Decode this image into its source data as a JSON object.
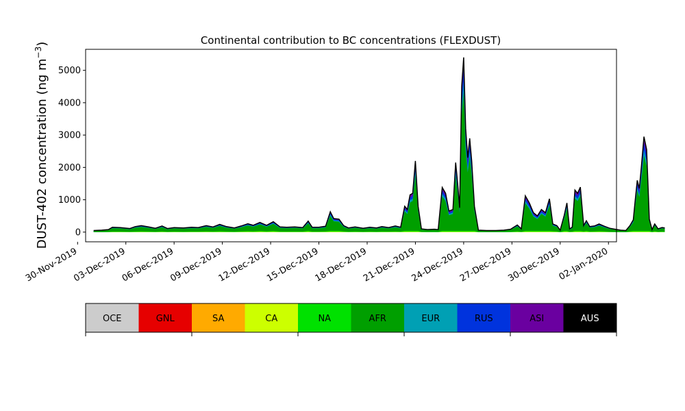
{
  "chart_data": {
    "type": "area",
    "title": "Continental contribution to BC concentrations (FLEXDUST)",
    "ylabel": "DUST-402 concentration (ng m",
    "ylabel_superscript": "−3",
    "ylabel_suffix": ")",
    "xlabel": "",
    "ylim": [
      -300,
      5650
    ],
    "yticks": [
      0,
      1000,
      2000,
      3000,
      4000,
      5000
    ],
    "xlim": [
      "2019-11-30T12:00",
      "2020-01-02T12:00"
    ],
    "xticks": [
      "30-Nov-2019",
      "03-Dec-2019",
      "06-Dec-2019",
      "09-Dec-2019",
      "12-Dec-2019",
      "15-Dec-2019",
      "18-Dec-2019",
      "21-Dec-2019",
      "24-Dec-2019",
      "27-Dec-2019",
      "30-Dec-2019",
      "02-Jan-2020"
    ],
    "xtick_dates": [
      "2019-11-30",
      "2019-12-03",
      "2019-12-06",
      "2019-12-09",
      "2019-12-12",
      "2019-12-15",
      "2019-12-18",
      "2019-12-21",
      "2019-12-24",
      "2019-12-27",
      "2019-12-30",
      "2020-01-02"
    ],
    "grid": false,
    "legend": {
      "placement": "bottom colorbar",
      "items": [
        {
          "label": "OCE",
          "color": "#cccccc"
        },
        {
          "label": "GNL",
          "color": "#e60000"
        },
        {
          "label": "SA",
          "color": "#ffaa00"
        },
        {
          "label": "CA",
          "color": "#ccff00"
        },
        {
          "label": "NA",
          "color": "#00e100"
        },
        {
          "label": "AFR",
          "color": "#009f00"
        },
        {
          "label": "EUR",
          "color": "#00a0b4"
        },
        {
          "label": "RUS",
          "color": "#0033dd"
        },
        {
          "label": "ASI",
          "color": "#6a00a0"
        },
        {
          "label": "AUS",
          "color": "#000000"
        }
      ]
    },
    "total_series": {
      "name": "AUS",
      "color": "#000000",
      "points": [
        [
          "2019-12-01T00:00",
          50
        ],
        [
          "2019-12-01T12:00",
          60
        ],
        [
          "2019-12-01T22:00",
          80
        ],
        [
          "2019-12-02T04:00",
          150
        ],
        [
          "2019-12-02T16:00",
          140
        ],
        [
          "2019-12-03T06:00",
          110
        ],
        [
          "2019-12-03T14:00",
          170
        ],
        [
          "2019-12-03T23:00",
          200
        ],
        [
          "2019-12-04T10:00",
          160
        ],
        [
          "2019-12-04T20:00",
          120
        ],
        [
          "2019-12-05T06:00",
          190
        ],
        [
          "2019-12-05T14:00",
          110
        ],
        [
          "2019-12-06T00:00",
          140
        ],
        [
          "2019-12-06T14:00",
          130
        ],
        [
          "2019-12-07T02:00",
          150
        ],
        [
          "2019-12-07T12:00",
          140
        ],
        [
          "2019-12-08T00:00",
          200
        ],
        [
          "2019-12-08T10:00",
          160
        ],
        [
          "2019-12-08T20:00",
          240
        ],
        [
          "2019-12-09T06:00",
          170
        ],
        [
          "2019-12-09T18:00",
          130
        ],
        [
          "2019-12-10T04:00",
          190
        ],
        [
          "2019-12-10T14:00",
          260
        ],
        [
          "2019-12-10T22:00",
          210
        ],
        [
          "2019-12-11T08:00",
          300
        ],
        [
          "2019-12-11T18:00",
          210
        ],
        [
          "2019-12-12T04:00",
          320
        ],
        [
          "2019-12-12T14:00",
          160
        ],
        [
          "2019-12-13T00:00",
          150
        ],
        [
          "2019-12-13T12:00",
          160
        ],
        [
          "2019-12-14T00:00",
          140
        ],
        [
          "2019-12-14T08:00",
          340
        ],
        [
          "2019-12-14T14:00",
          150
        ],
        [
          "2019-12-15T00:00",
          150
        ],
        [
          "2019-12-15T10:00",
          180
        ],
        [
          "2019-12-15T17:00",
          630
        ],
        [
          "2019-12-15T22:00",
          420
        ],
        [
          "2019-12-16T06:00",
          400
        ],
        [
          "2019-12-16T13:00",
          200
        ],
        [
          "2019-12-16T20:00",
          130
        ],
        [
          "2019-12-17T06:00",
          160
        ],
        [
          "2019-12-17T18:00",
          120
        ],
        [
          "2019-12-18T04:00",
          150
        ],
        [
          "2019-12-18T14:00",
          130
        ],
        [
          "2019-12-18T22:00",
          170
        ],
        [
          "2019-12-19T08:00",
          140
        ],
        [
          "2019-12-19T18:00",
          190
        ],
        [
          "2019-12-20T02:00",
          150
        ],
        [
          "2019-12-20T08:00",
          800
        ],
        [
          "2019-12-20T12:00",
          700
        ],
        [
          "2019-12-20T16:00",
          1150
        ],
        [
          "2019-12-20T20:00",
          1200
        ],
        [
          "2019-12-21T00:00",
          2200
        ],
        [
          "2019-12-21T04:00",
          800
        ],
        [
          "2019-12-21T09:00",
          100
        ],
        [
          "2019-12-21T18:00",
          80
        ],
        [
          "2019-12-22T04:00",
          90
        ],
        [
          "2019-12-22T10:00",
          80
        ],
        [
          "2019-12-22T16:00",
          1380
        ],
        [
          "2019-12-22T21:00",
          1200
        ],
        [
          "2019-12-23T02:00",
          650
        ],
        [
          "2019-12-23T08:00",
          700
        ],
        [
          "2019-12-23T12:00",
          2150
        ],
        [
          "2019-12-23T15:00",
          1500
        ],
        [
          "2019-12-23T18:00",
          750
        ],
        [
          "2019-12-23T21:00",
          4500
        ],
        [
          "2019-12-24T00:00",
          5400
        ],
        [
          "2019-12-24T03:00",
          3200
        ],
        [
          "2019-12-24T06:00",
          2300
        ],
        [
          "2019-12-24T09:00",
          2900
        ],
        [
          "2019-12-24T12:00",
          2200
        ],
        [
          "2019-12-24T16:00",
          800
        ],
        [
          "2019-12-24T22:00",
          60
        ],
        [
          "2019-12-25T10:00",
          50
        ],
        [
          "2019-12-26T00:00",
          50
        ],
        [
          "2019-12-26T12:00",
          60
        ],
        [
          "2019-12-26T22:00",
          90
        ],
        [
          "2019-12-27T08:00",
          220
        ],
        [
          "2019-12-27T14:00",
          100
        ],
        [
          "2019-12-27T20:00",
          1120
        ],
        [
          "2019-12-28T02:00",
          900
        ],
        [
          "2019-12-28T08:00",
          600
        ],
        [
          "2019-12-28T14:00",
          500
        ],
        [
          "2019-12-28T20:00",
          700
        ],
        [
          "2019-12-29T02:00",
          600
        ],
        [
          "2019-12-29T08:00",
          1030
        ],
        [
          "2019-12-29T13:00",
          250
        ],
        [
          "2019-12-29T19:00",
          200
        ],
        [
          "2019-12-30T00:00",
          60
        ],
        [
          "2019-12-30T06:00",
          520
        ],
        [
          "2019-12-30T10:00",
          900
        ],
        [
          "2019-12-30T14:00",
          100
        ],
        [
          "2019-12-30T18:00",
          150
        ],
        [
          "2019-12-30T22:00",
          1300
        ],
        [
          "2019-12-31T02:00",
          1200
        ],
        [
          "2019-12-31T06:00",
          1390
        ],
        [
          "2019-12-31T11:00",
          200
        ],
        [
          "2019-12-31T15:00",
          350
        ],
        [
          "2019-12-31T20:00",
          170
        ],
        [
          "2020-01-01T03:00",
          190
        ],
        [
          "2020-01-01T10:00",
          250
        ],
        [
          "2020-01-01T18:00",
          180
        ],
        [
          "2020-01-02T02:00",
          120
        ],
        [
          "2020-01-02T10:00",
          90
        ],
        [
          "2020-01-02T18:00",
          60
        ],
        [
          "2020-01-03T02:00",
          50
        ],
        [
          "2020-01-03T08:00",
          200
        ],
        [
          "2020-01-03T13:00",
          380
        ],
        [
          "2020-01-03T16:00",
          1000
        ],
        [
          "2020-01-03T19:00",
          1600
        ],
        [
          "2020-01-03T22:00",
          1350
        ],
        [
          "2020-01-04T01:00",
          2000
        ],
        [
          "2020-01-04T05:00",
          2950
        ],
        [
          "2020-01-04T09:00",
          2550
        ],
        [
          "2020-01-04T13:00",
          400
        ],
        [
          "2020-01-04T17:00",
          80
        ],
        [
          "2020-01-04T21:00",
          250
        ],
        [
          "2020-01-05T02:00",
          100
        ],
        [
          "2020-01-05T08:00",
          140
        ],
        [
          "2020-01-05T12:00",
          130
        ]
      ]
    }
  }
}
